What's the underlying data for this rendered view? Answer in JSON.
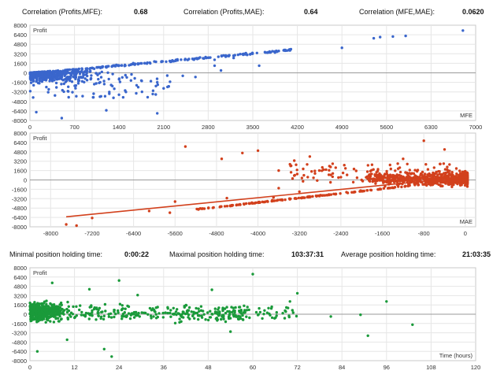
{
  "header": {
    "corr_profit_mfe_label": "Correlation (Profits,MFE):",
    "corr_profit_mfe_value": "0.68",
    "corr_profit_mae_label": "Correlation (Profits,MAE):",
    "corr_profit_mae_value": "0.64",
    "corr_mfe_mae_label": "Correlation (MFE,MAE):",
    "corr_mfe_mae_value": "0.0620"
  },
  "holding": {
    "min_label": "Minimal position holding time:",
    "min_value": "0:00:22",
    "max_label": "Maximal position holding time:",
    "max_value": "103:37:31",
    "avg_label": "Average position holding time:",
    "avg_value": "21:03:35"
  },
  "chart_data": [
    {
      "type": "scatter",
      "ylabel": "Profit",
      "xlabel": "MFE",
      "color": "#3a66cc",
      "xlim": [
        0,
        7000
      ],
      "ylim": [
        -8000,
        8000
      ],
      "xticks": [
        0,
        700,
        1400,
        2100,
        2800,
        3500,
        4200,
        4900,
        5600,
        6300,
        7000
      ],
      "yticks": [
        8000,
        6400,
        4800,
        3200,
        1600,
        0,
        -1600,
        -3200,
        -4800,
        -6400,
        -8000
      ],
      "points": [
        [
          4900,
          4200
        ],
        [
          5400,
          5800
        ],
        [
          5500,
          6000
        ],
        [
          5700,
          6100
        ],
        [
          5900,
          6200
        ],
        [
          6800,
          7100
        ],
        [
          3600,
          1200
        ],
        [
          3200,
          2500
        ],
        [
          2900,
          2200
        ],
        [
          2400,
          -500
        ],
        [
          2100,
          -2600
        ],
        [
          2000,
          -6800
        ],
        [
          1750,
          -1300
        ],
        [
          1500,
          -400
        ],
        [
          1400,
          -1100
        ],
        [
          1100,
          -4000
        ],
        [
          1000,
          -3500
        ],
        [
          1300,
          -200
        ],
        [
          2600,
          -700
        ],
        [
          2200,
          -1500
        ],
        [
          1900,
          -1400
        ],
        [
          1700,
          -2400
        ],
        [
          1200,
          -6300
        ],
        [
          100,
          -6600
        ],
        [
          500,
          -7600
        ],
        [
          2900,
          1200
        ],
        [
          3000,
          400
        ]
      ]
    },
    {
      "type": "scatter",
      "ylabel": "Profit",
      "xlabel": "MAE",
      "color": "#d2401c",
      "xlim": [
        -8400,
        200
      ],
      "ylim": [
        -8000,
        8000
      ],
      "xticks": [
        -8000,
        -7200,
        -6400,
        -5600,
        -4800,
        -4000,
        -3200,
        -2400,
        -1600,
        -800,
        0
      ],
      "yticks": [
        8000,
        6400,
        4800,
        3200,
        1600,
        0,
        -1600,
        -3200,
        -4800,
        -6400,
        -8000
      ],
      "trend": [
        [
          -7700,
          -6300
        ],
        [
          0,
          500
        ]
      ],
      "points": [
        [
          -5400,
          5700
        ],
        [
          -4300,
          4600
        ],
        [
          -4700,
          3600
        ],
        [
          -4000,
          5000
        ],
        [
          -3600,
          1600
        ],
        [
          -3300,
          3300
        ],
        [
          -3000,
          4000
        ],
        [
          -2900,
          1100
        ],
        [
          -2500,
          2100
        ],
        [
          -1800,
          2600
        ],
        [
          -1200,
          3600
        ],
        [
          -800,
          6700
        ],
        [
          -600,
          2100
        ],
        [
          -400,
          5200
        ],
        [
          -7700,
          -7600
        ],
        [
          -7500,
          -7800
        ],
        [
          -7200,
          -6500
        ],
        [
          -6100,
          -5300
        ],
        [
          -5700,
          -5600
        ],
        [
          -5600,
          -3700
        ],
        [
          -4600,
          -3100
        ],
        [
          -4500,
          -4400
        ],
        [
          -3700,
          -3000
        ],
        [
          -3600,
          -1400
        ],
        [
          -3200,
          -2000
        ],
        [
          -2600,
          -400
        ],
        [
          -2000,
          0
        ]
      ]
    },
    {
      "type": "scatter",
      "ylabel": "Profit",
      "xlabel": "Time (hours)",
      "color": "#1a9a3a",
      "xlim": [
        0,
        120
      ],
      "ylim": [
        -8000,
        8000
      ],
      "xticks": [
        0,
        12,
        24,
        36,
        48,
        60,
        72,
        84,
        96,
        108,
        120
      ],
      "yticks": [
        8000,
        6400,
        4800,
        3200,
        1600,
        0,
        -1600,
        -3200,
        -4800,
        -6400,
        -8000
      ],
      "points": [
        [
          60,
          6900
        ],
        [
          72,
          3600
        ],
        [
          81,
          -400
        ],
        [
          91,
          -3700
        ],
        [
          96,
          2200
        ],
        [
          103,
          -1800
        ],
        [
          89,
          -100
        ],
        [
          24,
          5800
        ],
        [
          16,
          4300
        ],
        [
          6,
          5400
        ],
        [
          2,
          -6400
        ],
        [
          10,
          -4400
        ],
        [
          22,
          -7300
        ],
        [
          20,
          -6000
        ],
        [
          29,
          3300
        ],
        [
          49,
          4200
        ],
        [
          54,
          -3000
        ],
        [
          70,
          2200
        ]
      ]
    }
  ]
}
